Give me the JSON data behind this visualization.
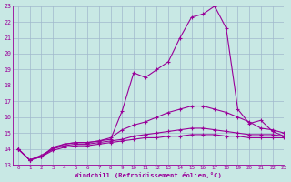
{
  "xlabel": "Windchill (Refroidissement éolien,°C)",
  "bg_color": "#c8e8e4",
  "grid_color": "#a0b8cc",
  "line_color": "#990099",
  "x_ticks": [
    0,
    1,
    2,
    3,
    4,
    5,
    6,
    7,
    8,
    9,
    10,
    11,
    12,
    13,
    14,
    15,
    16,
    17,
    18,
    19,
    20,
    21,
    22,
    23
  ],
  "ylim": [
    13,
    23
  ],
  "xlim": [
    -0.5,
    23
  ],
  "line1": [
    14.0,
    13.3,
    13.5,
    14.1,
    14.3,
    14.4,
    14.4,
    14.5,
    14.6,
    16.4,
    18.8,
    18.5,
    19.0,
    19.5,
    21.0,
    22.3,
    22.5,
    23.0,
    21.6,
    16.5,
    15.6,
    15.8,
    15.1,
    14.8
  ],
  "line2": [
    14.0,
    13.3,
    13.6,
    14.0,
    14.3,
    14.4,
    14.4,
    14.5,
    14.7,
    15.2,
    15.5,
    15.7,
    16.0,
    16.3,
    16.5,
    16.7,
    16.7,
    16.5,
    16.3,
    16.0,
    15.7,
    15.3,
    15.2,
    15.0
  ],
  "line3": [
    14.0,
    13.3,
    13.5,
    14.0,
    14.2,
    14.3,
    14.3,
    14.4,
    14.5,
    14.6,
    14.8,
    14.9,
    15.0,
    15.1,
    15.2,
    15.3,
    15.3,
    15.2,
    15.1,
    15.0,
    14.9,
    14.9,
    14.9,
    14.8
  ],
  "line4": [
    14.0,
    13.3,
    13.5,
    13.9,
    14.1,
    14.2,
    14.2,
    14.3,
    14.4,
    14.5,
    14.6,
    14.7,
    14.7,
    14.8,
    14.8,
    14.9,
    14.9,
    14.9,
    14.8,
    14.8,
    14.7,
    14.7,
    14.7,
    14.7
  ],
  "yticks": [
    13,
    14,
    15,
    16,
    17,
    18,
    19,
    20,
    21,
    22,
    23
  ]
}
